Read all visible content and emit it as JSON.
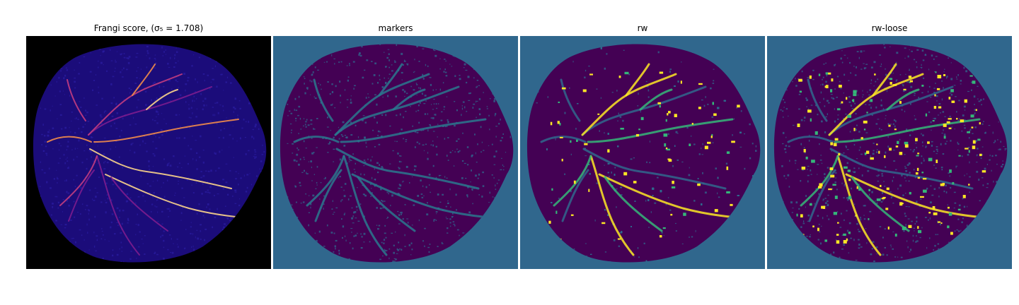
{
  "figure": {
    "panels": [
      {
        "id": "frangi",
        "title": "Frangi score, (σ₅ = 1.708)",
        "background": "#000000",
        "fundus_fill": "#1b0c7a",
        "vessel_colors": [
          "#7d1c8e",
          "#c23c80",
          "#f28b4a",
          "#fcd48a"
        ]
      },
      {
        "id": "markers",
        "title": "markers",
        "background": "#30678d",
        "fundus_fill": "#440154",
        "vessel_colors": [
          "#2a788e"
        ]
      },
      {
        "id": "rw",
        "title": "rw",
        "background": "#30678d",
        "fundus_fill": "#440154",
        "vessel_colors": [
          "#30678d",
          "#fde725",
          "#35b779"
        ]
      },
      {
        "id": "rw-loose",
        "title": "rw-loose",
        "background": "#30678d",
        "fundus_fill": "#440154",
        "vessel_colors": [
          "#30678d",
          "#fde725",
          "#35b779"
        ]
      }
    ]
  }
}
